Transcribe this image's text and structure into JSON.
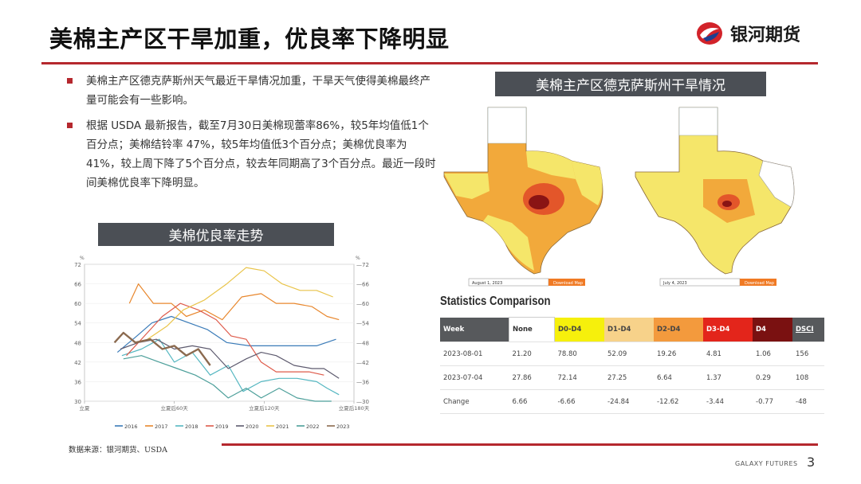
{
  "title": "美棉主产区干旱加重，优良率下降明显",
  "brand": {
    "name": "银河期货",
    "footer": "GALAXY FUTURES",
    "page_number": "3",
    "accent": "#b5282e"
  },
  "bullets": [
    "美棉主产区德克萨斯州天气最近干旱情况加重，干旱天气使得美棉最终产量可能会有一些影响。",
    "根据 USDA 最新报告，截至7月30日美棉现蕾率86%，较5年均值低1个百分点；美棉结铃率 47%，较5年均值低3个百分点；美棉优良率为41%，较上周下降了5个百分点，较去年同期高了3个百分点。最近一段时间美棉优良率下降明显。"
  ],
  "chart_header": "美棉优良率走势",
  "map_header": "美棉主产区德克萨斯州干旱情况",
  "source": "数据来源：银河期货、USDA",
  "maps": [
    {
      "date_label": "August 1, 2023",
      "button": "Download Map"
    },
    {
      "date_label": "July 4, 2023",
      "button": "Download Map"
    }
  ],
  "stats": {
    "title": "Statistics Comparison",
    "headers": [
      "Week",
      "None",
      "D0-D4",
      "D1-D4",
      "D2-D4",
      "D3-D4",
      "D4",
      "DSCI"
    ],
    "rows": [
      [
        "2023-08-01",
        "21.20",
        "78.80",
        "52.09",
        "19.26",
        "4.81",
        "1.06",
        "156"
      ],
      [
        "2023-07-04",
        "27.86",
        "72.14",
        "27.25",
        "6.64",
        "1.37",
        "0.29",
        "108"
      ],
      [
        "Change",
        "6.66",
        "-6.66",
        "-24.84",
        "-12.62",
        "-3.44",
        "-0.77",
        "-48"
      ]
    ]
  },
  "chart_data": {
    "type": "line",
    "title": "",
    "ylabel_left": "%",
    "ylabel_right": "%",
    "ylim": [
      30,
      72
    ],
    "yticks": [
      30,
      36,
      42,
      48,
      54,
      60,
      66,
      72
    ],
    "xticks": [
      {
        "x": 0,
        "label": "立夏"
      },
      {
        "x": 60,
        "label": "立夏后60天"
      },
      {
        "x": 120,
        "label": "立夏后120天"
      },
      {
        "x": 180,
        "label": "立夏后180天"
      }
    ],
    "xlim": [
      0,
      180
    ],
    "legend_position": "bottom",
    "series": [
      {
        "name": "2016",
        "color": "#3a7bb8",
        "points": [
          [
            22,
            45
          ],
          [
            35,
            50
          ],
          [
            45,
            54
          ],
          [
            58,
            56
          ],
          [
            70,
            54
          ],
          [
            82,
            52
          ],
          [
            95,
            48
          ],
          [
            110,
            47
          ],
          [
            125,
            47
          ],
          [
            140,
            47
          ],
          [
            155,
            47
          ],
          [
            168,
            49
          ]
        ]
      },
      {
        "name": "2017",
        "color": "#e8872d",
        "points": [
          [
            30,
            60
          ],
          [
            36,
            66
          ],
          [
            46,
            60
          ],
          [
            58,
            60
          ],
          [
            68,
            56
          ],
          [
            80,
            58
          ],
          [
            92,
            55
          ],
          [
            105,
            62
          ],
          [
            118,
            63
          ],
          [
            128,
            60
          ],
          [
            140,
            60
          ],
          [
            152,
            59
          ],
          [
            162,
            56
          ],
          [
            170,
            55
          ]
        ]
      },
      {
        "name": "2018",
        "color": "#55b7c1",
        "points": [
          [
            25,
            44
          ],
          [
            38,
            46
          ],
          [
            50,
            49
          ],
          [
            60,
            42
          ],
          [
            72,
            45
          ],
          [
            84,
            38
          ],
          [
            96,
            41
          ],
          [
            106,
            33
          ],
          [
            118,
            36
          ],
          [
            130,
            37
          ],
          [
            142,
            37
          ],
          [
            155,
            36
          ],
          [
            162,
            34
          ],
          [
            170,
            32
          ]
        ]
      },
      {
        "name": "2019",
        "color": "#de5a4a",
        "points": [
          [
            28,
            44
          ],
          [
            40,
            50
          ],
          [
            52,
            56
          ],
          [
            64,
            60
          ],
          [
            76,
            58
          ],
          [
            88,
            55
          ],
          [
            98,
            50
          ],
          [
            108,
            49
          ],
          [
            118,
            42
          ],
          [
            128,
            39
          ],
          [
            140,
            39
          ],
          [
            150,
            39
          ],
          [
            160,
            38
          ]
        ]
      },
      {
        "name": "2020",
        "color": "#5d5a6e",
        "points": [
          [
            24,
            46
          ],
          [
            36,
            48
          ],
          [
            48,
            49
          ],
          [
            60,
            46
          ],
          [
            72,
            47
          ],
          [
            84,
            46
          ],
          [
            96,
            40
          ],
          [
            108,
            43
          ],
          [
            118,
            45
          ],
          [
            128,
            44
          ],
          [
            140,
            41
          ],
          [
            152,
            40
          ],
          [
            160,
            40
          ],
          [
            170,
            37
          ]
        ]
      },
      {
        "name": "2021",
        "color": "#e9c44a",
        "points": [
          [
            42,
            49
          ],
          [
            55,
            53
          ],
          [
            66,
            58
          ],
          [
            80,
            61
          ],
          [
            95,
            66
          ],
          [
            108,
            71
          ],
          [
            120,
            70
          ],
          [
            132,
            66
          ],
          [
            144,
            64
          ],
          [
            155,
            64
          ],
          [
            166,
            62
          ]
        ]
      },
      {
        "name": "2022",
        "color": "#4c9f9a",
        "points": [
          [
            26,
            43
          ],
          [
            38,
            44
          ],
          [
            50,
            42
          ],
          [
            62,
            40
          ],
          [
            74,
            38
          ],
          [
            86,
            35
          ],
          [
            96,
            31
          ],
          [
            108,
            34
          ],
          [
            118,
            31
          ],
          [
            130,
            34
          ],
          [
            142,
            31
          ],
          [
            154,
            30
          ],
          [
            165,
            30
          ]
        ]
      },
      {
        "name": "2023",
        "color": "#8b6a4f",
        "points": [
          [
            20,
            48
          ],
          [
            26,
            51
          ],
          [
            34,
            48
          ],
          [
            44,
            49
          ],
          [
            52,
            46
          ],
          [
            60,
            47
          ],
          [
            68,
            44
          ],
          [
            76,
            46
          ],
          [
            84,
            41
          ]
        ]
      }
    ]
  }
}
